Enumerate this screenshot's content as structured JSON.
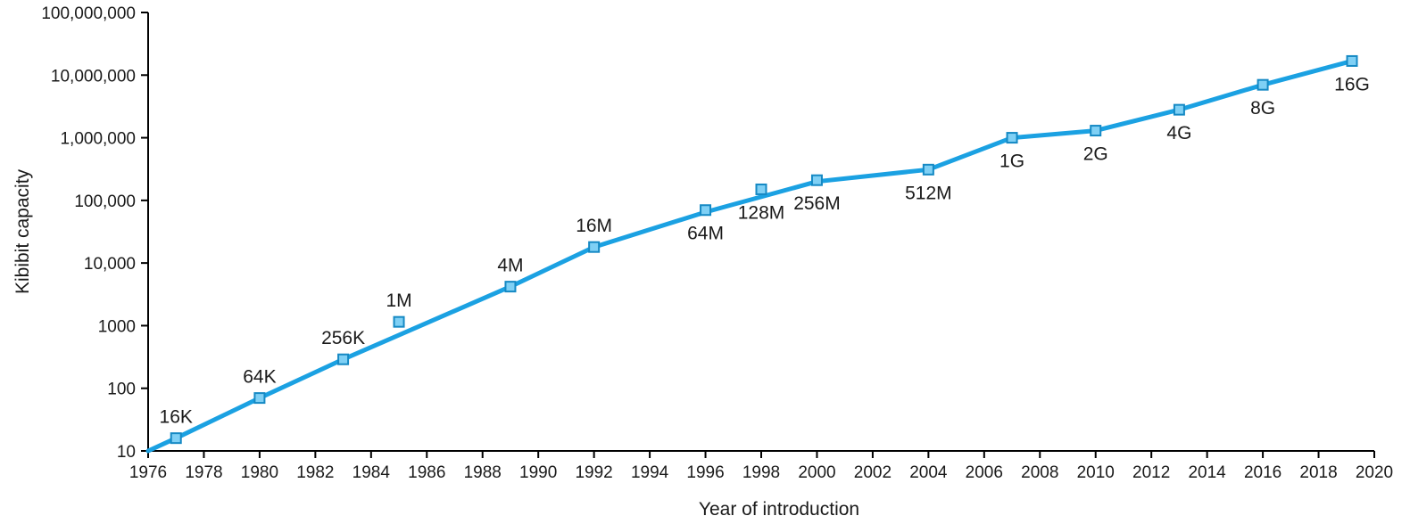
{
  "chart_data": {
    "type": "line",
    "title": "",
    "xlabel": "Year of introduction",
    "ylabel": "Kibibit capacity",
    "xlim": [
      1976,
      2020
    ],
    "ylim": [
      10,
      100000000
    ],
    "y_scale": "log",
    "grid": false,
    "x_ticks": [
      1976,
      1978,
      1980,
      1982,
      1984,
      1986,
      1988,
      1990,
      1992,
      1994,
      1996,
      1998,
      2000,
      2002,
      2004,
      2006,
      2008,
      2010,
      2012,
      2014,
      2016,
      2018,
      2020
    ],
    "x_tick_labels": [
      "1976",
      "1978",
      "1980",
      "1982",
      "1984",
      "1986",
      "1988",
      "1990",
      "1992",
      "1994",
      "1996",
      "1998",
      "2000",
      "2002",
      "2004",
      "2006",
      "2008",
      "2010",
      "2012",
      "2014",
      "2016",
      "2018",
      "2020"
    ],
    "y_ticks": [
      10,
      100,
      1000,
      10000,
      100000,
      1000000,
      10000000,
      100000000
    ],
    "y_tick_labels": [
      "10",
      "100",
      "1000",
      "10,000",
      "100,000",
      "1,000,000",
      "10,000,000",
      "100,000,000"
    ],
    "line_color": "#1ba1e2",
    "marker_fill": "#7fd0f5",
    "marker_stroke": "#1589c4",
    "line_points": [
      {
        "x": 1976,
        "y": 10
      },
      {
        "x": 1977,
        "y": 16
      },
      {
        "x": 1980,
        "y": 70
      },
      {
        "x": 1983,
        "y": 290
      },
      {
        "x": 1989,
        "y": 4200
      },
      {
        "x": 1992,
        "y": 18000
      },
      {
        "x": 1996,
        "y": 65000
      },
      {
        "x": 2000,
        "y": 200000
      },
      {
        "x": 2004,
        "y": 310000
      },
      {
        "x": 2007,
        "y": 1000000
      },
      {
        "x": 2010,
        "y": 1300000
      },
      {
        "x": 2013,
        "y": 2800000
      },
      {
        "x": 2016,
        "y": 7000000
      },
      {
        "x": 2019.2,
        "y": 16800000
      }
    ],
    "markers": [
      {
        "x": 1977,
        "y": 16,
        "label": "16K",
        "label_pos": "above"
      },
      {
        "x": 1980,
        "y": 70,
        "label": "64K",
        "label_pos": "above"
      },
      {
        "x": 1983,
        "y": 290,
        "label": "256K",
        "label_pos": "above"
      },
      {
        "x": 1985,
        "y": 1150,
        "label": "1M",
        "label_pos": "above"
      },
      {
        "x": 1989,
        "y": 4200,
        "label": "4M",
        "label_pos": "above"
      },
      {
        "x": 1992,
        "y": 18000,
        "label": "16M",
        "label_pos": "above"
      },
      {
        "x": 1996,
        "y": 70000,
        "label": "64M",
        "label_pos": "below"
      },
      {
        "x": 1998,
        "y": 150000,
        "label": "128M",
        "label_pos": "below"
      },
      {
        "x": 2000,
        "y": 210000,
        "label": "256M",
        "label_pos": "below"
      },
      {
        "x": 2004,
        "y": 310000,
        "label": "512M",
        "label_pos": "below"
      },
      {
        "x": 2007,
        "y": 1000000,
        "label": "1G",
        "label_pos": "below"
      },
      {
        "x": 2010,
        "y": 1300000,
        "label": "2G",
        "label_pos": "below"
      },
      {
        "x": 2013,
        "y": 2800000,
        "label": "4G",
        "label_pos": "below"
      },
      {
        "x": 2016,
        "y": 7000000,
        "label": "8G",
        "label_pos": "below"
      },
      {
        "x": 2019.2,
        "y": 16800000,
        "label": "16G",
        "label_pos": "below"
      }
    ]
  }
}
